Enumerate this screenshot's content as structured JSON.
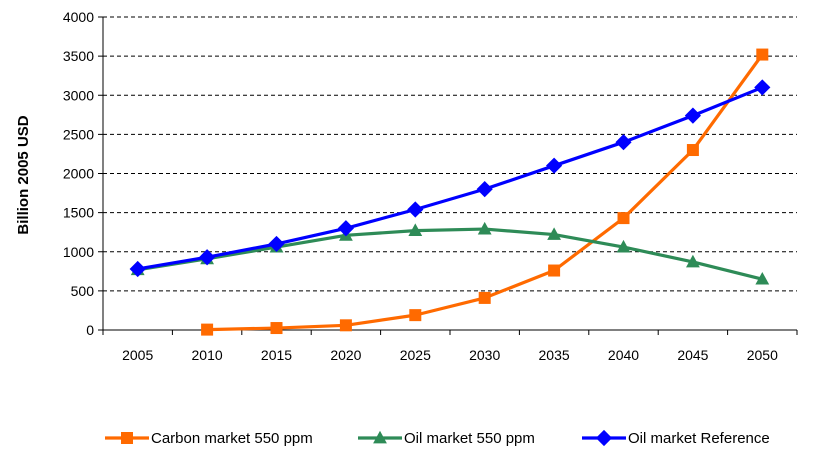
{
  "chart_data": {
    "type": "line",
    "categories": [
      "2005",
      "2010",
      "2015",
      "2020",
      "2025",
      "2030",
      "2035",
      "2040",
      "2045",
      "2050"
    ],
    "ylabel": "Billion 2005 USD",
    "xlabel": "",
    "ylim": [
      0,
      4000
    ],
    "yticks": [
      "0",
      "500",
      "1000",
      "1500",
      "2000",
      "2500",
      "3000",
      "3500",
      "4000"
    ],
    "grid": "horizontal dashed",
    "legend_position": "bottom",
    "series": [
      {
        "name": "Carbon market 550 ppm",
        "color": "#FF6A00",
        "marker": "square",
        "values": [
          null,
          5,
          25,
          60,
          190,
          410,
          760,
          1430,
          2300,
          3520
        ]
      },
      {
        "name": "Oil market 550 ppm",
        "color": "#2E8B57",
        "marker": "triangle",
        "values": [
          770,
          910,
          1060,
          1210,
          1270,
          1290,
          1220,
          1060,
          870,
          650
        ]
      },
      {
        "name": "Oil market Reference",
        "color": "#0000FF",
        "marker": "diamond",
        "values": [
          780,
          930,
          1100,
          1300,
          1540,
          1800,
          2100,
          2400,
          2740,
          3100
        ]
      }
    ]
  }
}
